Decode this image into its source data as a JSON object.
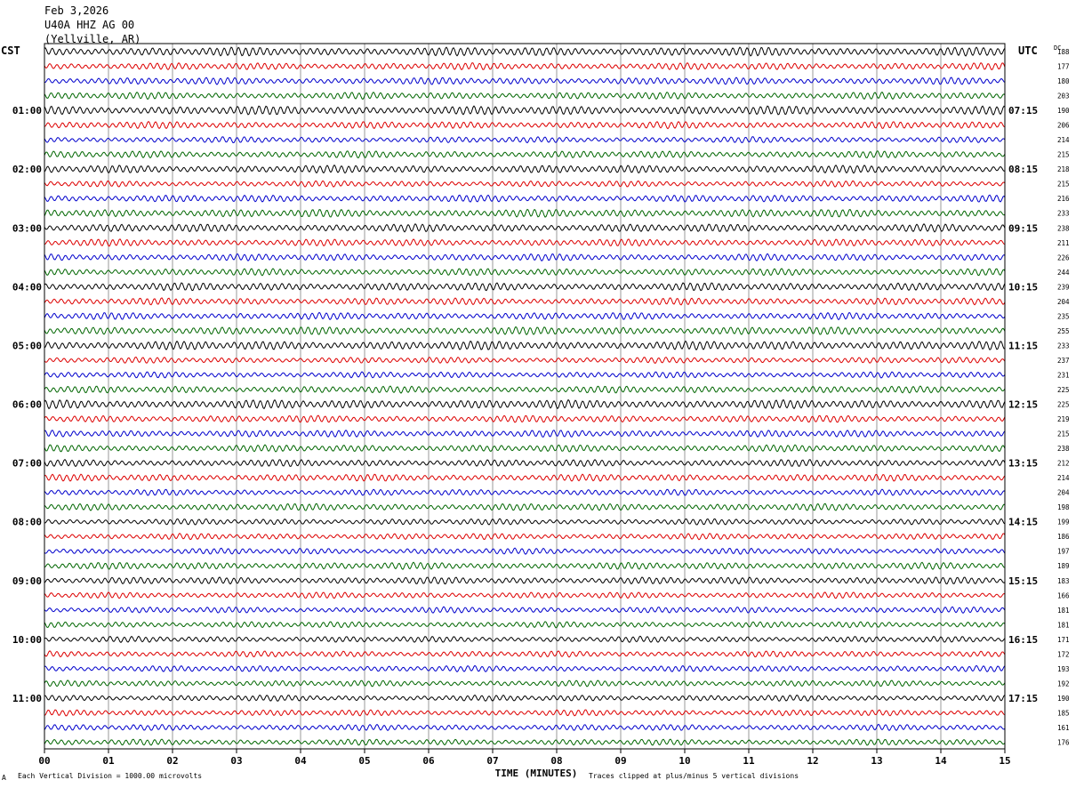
{
  "header": {
    "date": "Feb 3,2026",
    "station": "U40A HHZ AG 00",
    "location": "(Yellville, AR)"
  },
  "left_axis_title": "CST",
  "right_axis_title": "UTC",
  "dc_label": "DC",
  "footer": {
    "vertical_division": "Each Vertical Division = 1000.00 microvolts",
    "clipping_note": "Traces clipped at plus/minus 5 vertical divisions",
    "corner_mark": "A"
  },
  "chart_data": {
    "type": "line",
    "title": "",
    "xlabel": "TIME (MINUTES)",
    "ylabel": "",
    "xlim": [
      0,
      15
    ],
    "x_ticks": [
      "00",
      "01",
      "02",
      "03",
      "04",
      "05",
      "06",
      "07",
      "08",
      "09",
      "10",
      "11",
      "12",
      "13",
      "14",
      "15"
    ],
    "grid": true,
    "trace_colors": [
      "#000000",
      "#dd0000",
      "#0000cc",
      "#006600"
    ],
    "trace_count": 48,
    "left_time_labels": [
      {
        "trace": 4,
        "label": "01:00"
      },
      {
        "trace": 8,
        "label": "02:00"
      },
      {
        "trace": 12,
        "label": "03:00"
      },
      {
        "trace": 16,
        "label": "04:00"
      },
      {
        "trace": 20,
        "label": "05:00"
      },
      {
        "trace": 24,
        "label": "06:00"
      },
      {
        "trace": 28,
        "label": "07:00"
      },
      {
        "trace": 32,
        "label": "08:00"
      },
      {
        "trace": 36,
        "label": "09:00"
      },
      {
        "trace": 40,
        "label": "10:00"
      },
      {
        "trace": 44,
        "label": "11:00"
      }
    ],
    "right_time_labels": [
      {
        "trace": 4,
        "label": "07:15"
      },
      {
        "trace": 8,
        "label": "08:15"
      },
      {
        "trace": 12,
        "label": "09:15"
      },
      {
        "trace": 16,
        "label": "10:15"
      },
      {
        "trace": 20,
        "label": "11:15"
      },
      {
        "trace": 24,
        "label": "12:15"
      },
      {
        "trace": 28,
        "label": "13:15"
      },
      {
        "trace": 32,
        "label": "14:15"
      },
      {
        "trace": 36,
        "label": "15:15"
      },
      {
        "trace": 40,
        "label": "16:15"
      },
      {
        "trace": 44,
        "label": "17:15"
      }
    ],
    "dc_offsets": [
      "188",
      "177",
      "180",
      "203",
      "190",
      "206",
      "214",
      "215",
      "218",
      "215",
      "216",
      "233",
      "238",
      "211",
      "226",
      "244",
      "239",
      "204",
      "235",
      "255",
      "233",
      "237",
      "231",
      "225",
      "225",
      "219",
      "215",
      "238",
      "212",
      "214",
      "204",
      "198",
      "199",
      "186",
      "197",
      "189",
      "183",
      "166",
      "181",
      "181",
      "171",
      "172",
      "193",
      "192",
      "190",
      "185",
      "161",
      "176"
    ],
    "trace_amplitude_divisions": [
      4.5,
      3.5,
      3.5,
      3.5,
      4.5,
      3.5,
      3.0,
      3.5,
      4.0,
      3.0,
      3.5,
      4.0,
      4.0,
      3.5,
      3.5,
      3.5,
      4.0,
      3.5,
      3.5,
      4.0,
      4.5,
      3.0,
      3.0,
      3.5,
      4.5,
      3.5,
      3.5,
      3.5,
      3.5,
      3.5,
      3.0,
      3.5,
      3.0,
      3.0,
      3.0,
      3.5,
      3.5,
      3.0,
      3.0,
      3.0,
      3.0,
      3.0,
      3.0,
      3.0,
      3.0,
      3.0,
      3.0,
      3.0
    ]
  }
}
